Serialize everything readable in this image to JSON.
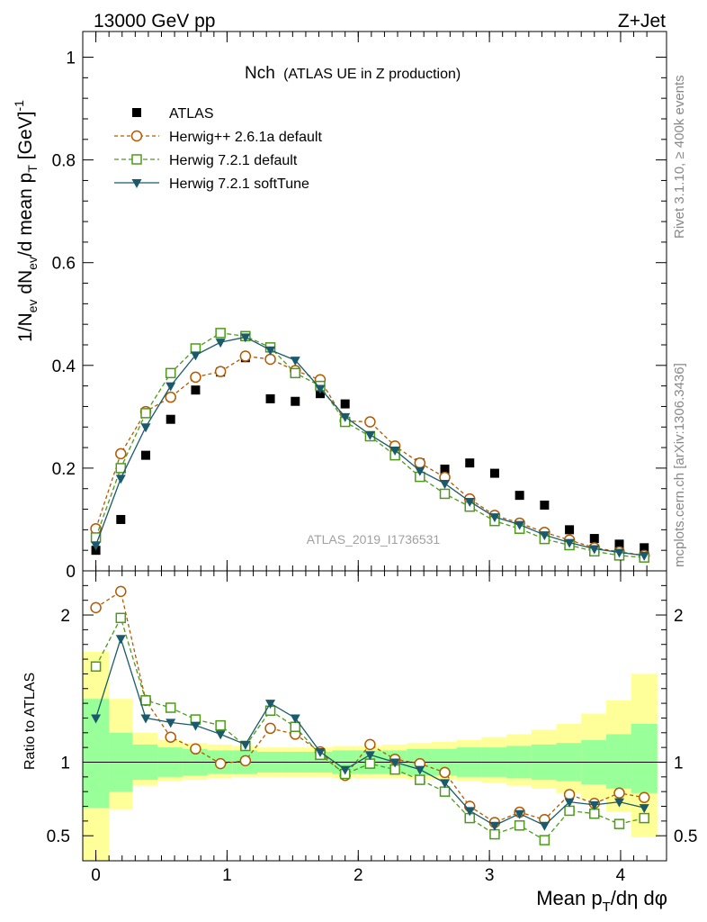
{
  "header": {
    "left": "13000 GeV pp",
    "right": "Z+Jet"
  },
  "title": {
    "main": "Nch",
    "sub": "(ATLAS UE in Z production)"
  },
  "side": {
    "rivet": "Rivet 3.1.10, ≥ 400k events",
    "mcplots": "mcplots.cern.ch [arXiv:1306.3436]"
  },
  "watermark": "ATLAS_2019_I1736531",
  "axes": {
    "ylabel_main": "1/N_ev dN_ev/d mean p_T [GeV]^-1",
    "ylabel_ratio": "Ratio to ATLAS",
    "xlabel": "Mean p_T/dη dφ"
  },
  "legend": [
    {
      "label": "ATLAS",
      "key": "atlas"
    },
    {
      "label": "Herwig++ 2.6.1a default",
      "key": "hpp"
    },
    {
      "label": "Herwig 7.2.1 default",
      "key": "h7d"
    },
    {
      "label": "Herwig 7.2.1 softTune",
      "key": "h7s"
    }
  ],
  "colors": {
    "atlas": "#000000",
    "hpp": "#b35900",
    "h7d": "#4d9a1a",
    "h7s": "#1a5a6a",
    "band_inner": "#99ff99",
    "band_outer": "#ffff99"
  },
  "chart_data": {
    "type": "scatter",
    "xlim": [
      -0.1,
      4.35
    ],
    "main": {
      "ylim": [
        0,
        1.05
      ],
      "yticks": [
        0,
        0.2,
        0.4,
        0.6,
        0.8,
        1
      ],
      "ytick_labels": [
        "0",
        "0.2",
        "0.4",
        "0.6",
        "0.8",
        "1"
      ]
    },
    "ratio": {
      "ylim": [
        0.33,
        2.3
      ],
      "yticks": [
        0.5,
        1,
        2
      ],
      "ytick_labels": [
        "0.5",
        "1",
        "2"
      ]
    },
    "xticks": [
      0,
      1,
      2,
      3,
      4
    ],
    "xtick_labels": [
      "0",
      "1",
      "2",
      "3",
      "4"
    ],
    "x": [
      0.0,
      0.19,
      0.38,
      0.57,
      0.76,
      0.95,
      1.14,
      1.33,
      1.52,
      1.71,
      1.9,
      2.09,
      2.28,
      2.47,
      2.66,
      2.85,
      3.04,
      3.23,
      3.42,
      3.61,
      3.8,
      3.99,
      4.18
    ],
    "edges": [
      -0.1,
      0.1,
      0.28,
      0.47,
      0.66,
      0.85,
      1.04,
      1.23,
      1.42,
      1.61,
      1.8,
      1.99,
      2.18,
      2.37,
      2.56,
      2.75,
      2.94,
      3.13,
      3.32,
      3.51,
      3.7,
      3.89,
      4.08,
      4.28
    ],
    "series": [
      {
        "name": "ATLAS",
        "key": "atlas",
        "marker": "square-filled",
        "values": [
          0.04,
          0.1,
          0.225,
          0.295,
          0.352,
          0.387,
          0.415,
          0.335,
          0.33,
          0.345,
          0.325,
          0.262,
          0.24,
          0.21,
          0.198,
          0.21,
          0.19,
          0.147,
          0.128,
          0.08,
          0.063,
          0.052,
          0.045
        ]
      },
      {
        "name": "Herwig++ 2.6.1a default",
        "key": "hpp",
        "marker": "circle-open",
        "dash": "4,3",
        "values": [
          0.082,
          0.228,
          0.31,
          0.338,
          0.377,
          0.388,
          0.418,
          0.412,
          0.39,
          0.372,
          0.292,
          0.29,
          0.243,
          0.21,
          0.182,
          0.14,
          0.108,
          0.093,
          0.075,
          0.06,
          0.045,
          0.037,
          0.03
        ]
      },
      {
        "name": "Herwig 7.2.1 default",
        "key": "h7d",
        "marker": "square-open",
        "dash": "5,3",
        "values": [
          0.065,
          0.2,
          0.307,
          0.385,
          0.433,
          0.463,
          0.457,
          0.435,
          0.385,
          0.36,
          0.29,
          0.262,
          0.225,
          0.183,
          0.15,
          0.125,
          0.097,
          0.082,
          0.062,
          0.05,
          0.038,
          0.03,
          0.026
        ]
      },
      {
        "name": "Herwig 7.2.1 softTune",
        "key": "h7s",
        "marker": "triangle-down-filled",
        "dash": "",
        "values": [
          0.05,
          0.18,
          0.28,
          0.36,
          0.42,
          0.445,
          0.455,
          0.43,
          0.41,
          0.355,
          0.3,
          0.265,
          0.235,
          0.195,
          0.17,
          0.135,
          0.105,
          0.09,
          0.07,
          0.055,
          0.043,
          0.036,
          0.03
        ]
      }
    ],
    "ratio_series": [
      {
        "key": "hpp",
        "values": [
          2.05,
          2.16,
          1.42,
          1.17,
          1.09,
          0.99,
          1.01,
          1.23,
          1.19,
          1.07,
          0.91,
          1.12,
          1.02,
          0.99,
          0.93,
          0.7,
          0.59,
          0.66,
          0.61,
          0.78,
          0.72,
          0.79,
          0.76
        ]
      },
      {
        "key": "h7d",
        "values": [
          1.65,
          1.98,
          1.42,
          1.37,
          1.29,
          1.25,
          1.11,
          1.35,
          1.24,
          1.05,
          0.92,
          0.99,
          0.95,
          0.88,
          0.8,
          0.62,
          0.51,
          0.57,
          0.47,
          0.67,
          0.65,
          0.58,
          0.62
        ]
      },
      {
        "key": "h7s",
        "values": [
          1.3,
          1.84,
          1.3,
          1.27,
          1.25,
          1.19,
          1.12,
          1.4,
          1.3,
          1.07,
          0.95,
          1.05,
          1.0,
          0.95,
          0.86,
          0.67,
          0.57,
          0.65,
          0.57,
          0.73,
          0.71,
          0.73,
          0.69
        ]
      }
    ],
    "band_inner": [
      {
        "lo": 0.69,
        "hi": 1.43
      },
      {
        "lo": 0.8,
        "hi": 1.2
      },
      {
        "lo": 0.88,
        "hi": 1.12
      },
      {
        "lo": 0.9,
        "hi": 1.1
      },
      {
        "lo": 0.91,
        "hi": 1.09
      },
      {
        "lo": 0.92,
        "hi": 1.08
      },
      {
        "lo": 0.92,
        "hi": 1.08
      },
      {
        "lo": 0.93,
        "hi": 1.07
      },
      {
        "lo": 0.93,
        "hi": 1.07
      },
      {
        "lo": 0.93,
        "hi": 1.07
      },
      {
        "lo": 0.92,
        "hi": 1.08
      },
      {
        "lo": 0.92,
        "hi": 1.08
      },
      {
        "lo": 0.92,
        "hi": 1.08
      },
      {
        "lo": 0.91,
        "hi": 1.09
      },
      {
        "lo": 0.91,
        "hi": 1.09
      },
      {
        "lo": 0.9,
        "hi": 1.1
      },
      {
        "lo": 0.9,
        "hi": 1.1
      },
      {
        "lo": 0.89,
        "hi": 1.11
      },
      {
        "lo": 0.88,
        "hi": 1.12
      },
      {
        "lo": 0.87,
        "hi": 1.13
      },
      {
        "lo": 0.85,
        "hi": 1.15
      },
      {
        "lo": 0.82,
        "hi": 1.19
      },
      {
        "lo": 0.79,
        "hi": 1.26
      }
    ],
    "band_outer": [
      {
        "lo": 0.33,
        "hi": 1.75
      },
      {
        "lo": 0.68,
        "hi": 1.43
      },
      {
        "lo": 0.84,
        "hi": 1.2
      },
      {
        "lo": 0.87,
        "hi": 1.15
      },
      {
        "lo": 0.88,
        "hi": 1.13
      },
      {
        "lo": 0.89,
        "hi": 1.12
      },
      {
        "lo": 0.9,
        "hi": 1.11
      },
      {
        "lo": 0.9,
        "hi": 1.1
      },
      {
        "lo": 0.9,
        "hi": 1.1
      },
      {
        "lo": 0.9,
        "hi": 1.1
      },
      {
        "lo": 0.89,
        "hi": 1.11
      },
      {
        "lo": 0.89,
        "hi": 1.11
      },
      {
        "lo": 0.89,
        "hi": 1.12
      },
      {
        "lo": 0.88,
        "hi": 1.13
      },
      {
        "lo": 0.88,
        "hi": 1.14
      },
      {
        "lo": 0.87,
        "hi": 1.15
      },
      {
        "lo": 0.86,
        "hi": 1.17
      },
      {
        "lo": 0.84,
        "hi": 1.19
      },
      {
        "lo": 0.82,
        "hi": 1.22
      },
      {
        "lo": 0.79,
        "hi": 1.26
      },
      {
        "lo": 0.75,
        "hi": 1.33
      },
      {
        "lo": 0.66,
        "hi": 1.42
      },
      {
        "lo": 0.49,
        "hi": 1.6
      }
    ]
  }
}
